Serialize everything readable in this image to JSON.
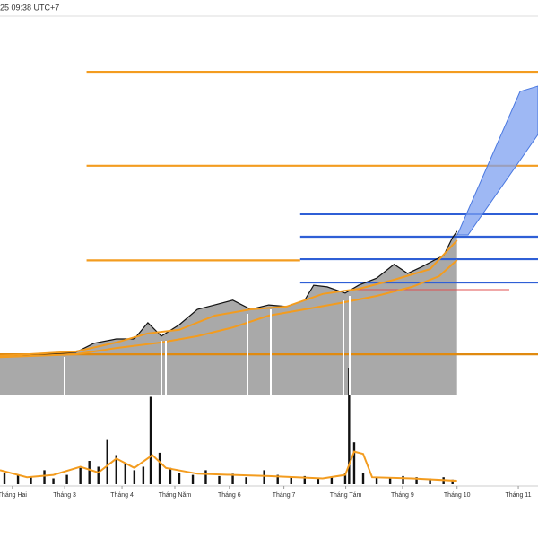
{
  "header": {
    "timestamp": "25 09:38 UTC+7"
  },
  "chart_data": [
    {
      "type": "line",
      "xlim": [
        1.78,
        11.35
      ],
      "ylim": [
        0,
        100
      ],
      "area": {
        "color": "#a9a9a9",
        "series": 0
      },
      "series": [
        {
          "color": "#111111",
          "x": [
            1.78,
            2.41,
            3.13,
            3.45,
            3.85,
            4.17,
            4.41,
            4.65,
            4.97,
            5.29,
            5.6,
            5.92,
            6.24,
            6.56,
            6.88,
            7.2,
            7.36,
            7.6,
            7.92,
            8.16,
            8.48,
            8.79,
            9.03,
            9.27,
            9.51,
            9.67,
            9.83,
            9.91
          ],
          "values": [
            9.8,
            10.0,
            10.7,
            13.0,
            14.1,
            14.1,
            18.2,
            14.8,
            17.7,
            21.6,
            22.7,
            23.9,
            21.6,
            22.7,
            22.3,
            23.9,
            27.7,
            27.3,
            25.7,
            27.7,
            29.5,
            33.0,
            30.7,
            32.3,
            34.1,
            35.2,
            39.8,
            41.4
          ]
        },
        {
          "color": "#f39c1f",
          "x": [
            1.78,
            3.13,
            3.85,
            4.41,
            4.97,
            5.6,
            6.24,
            6.88,
            7.52,
            8.16,
            8.79,
            9.43,
            9.91
          ],
          "values": [
            9.8,
            10.9,
            13.2,
            15.5,
            16.4,
            20.0,
            21.6,
            22.3,
            25.5,
            26.8,
            29.1,
            31.8,
            39.1
          ]
        },
        {
          "color": "#f39c1f",
          "x": [
            1.78,
            3.13,
            3.85,
            4.65,
            5.29,
            5.92,
            6.56,
            7.2,
            7.84,
            8.48,
            9.11,
            9.59,
            9.91
          ],
          "values": [
            9.5,
            10.2,
            11.8,
            13.2,
            14.8,
            17.0,
            20.0,
            21.6,
            23.2,
            25.0,
            27.3,
            30.0,
            34.1
          ]
        }
      ],
      "hlines": [
        {
          "value": 81.8,
          "color": "#f39c1f",
          "xrange": [
            3.32,
            11.35
          ]
        },
        {
          "value": 58.0,
          "color": "#f39c1f",
          "xrange": [
            3.32,
            11.35
          ]
        },
        {
          "value": 34.0,
          "color": "#f39c1f",
          "xrange": [
            3.32,
            7.12
          ]
        },
        {
          "value": 10.2,
          "color": "#e08a10",
          "xrange": [
            1.78,
            11.35
          ]
        },
        {
          "value": 45.7,
          "color": "#2f5fd6",
          "xrange": [
            7.12,
            11.35
          ]
        },
        {
          "value": 40.0,
          "color": "#2f5fd6",
          "xrange": [
            7.12,
            11.35
          ]
        },
        {
          "value": 34.3,
          "color": "#2f5fd6",
          "xrange": [
            7.12,
            11.35
          ]
        },
        {
          "value": 28.4,
          "color": "#2f5fd6",
          "xrange": [
            7.12,
            11.35
          ]
        },
        {
          "value": 26.6,
          "color": "#e05050",
          "xrange": [
            8.08,
            10.84
          ]
        }
      ]
    },
    {
      "type": "bar",
      "color": "#111111",
      "xlim": [
        1.78,
        11.35
      ],
      "ylim": [
        0,
        100
      ],
      "xticks": [
        {
          "value": 2,
          "label": "Tháng Hai"
        },
        {
          "value": 2.93,
          "label": "Tháng 3"
        },
        {
          "value": 3.95,
          "label": "Tháng 4"
        },
        {
          "value": 4.89,
          "label": "Tháng Năm"
        },
        {
          "value": 5.86,
          "label": "Tháng 6"
        },
        {
          "value": 6.83,
          "label": "Tháng 7"
        },
        {
          "value": 7.93,
          "label": "Tháng Tám"
        },
        {
          "value": 8.94,
          "label": "Tháng 9"
        },
        {
          "value": 9.91,
          "label": "Tháng 10"
        },
        {
          "value": 11.0,
          "label": "Tháng 11"
        }
      ],
      "x": [
        1.86,
        2.1,
        2.33,
        2.57,
        2.73,
        2.97,
        3.21,
        3.37,
        3.53,
        3.69,
        3.85,
        4.01,
        4.17,
        4.33,
        4.46,
        4.62,
        4.81,
        4.97,
        5.21,
        5.44,
        5.68,
        5.92,
        6.16,
        6.48,
        6.72,
        6.96,
        7.2,
        7.44,
        7.68,
        7.92,
        7.99,
        8.08,
        8.24,
        8.48,
        8.72,
        8.95,
        9.19,
        9.43,
        9.67,
        9.83
      ],
      "values": [
        10,
        8,
        6,
        12,
        5,
        8,
        14,
        20,
        15,
        38,
        25,
        18,
        12,
        15,
        75,
        27,
        14,
        10,
        8,
        12,
        7,
        9,
        6,
        12,
        8,
        6,
        7,
        5,
        6,
        10,
        100,
        36,
        10,
        6,
        5,
        7,
        6,
        5,
        6,
        4
      ],
      "overlay": {
        "color": "#f39c1f",
        "x": [
          1.78,
          2.26,
          2.73,
          3.21,
          3.53,
          3.85,
          4.17,
          4.49,
          4.73,
          5.29,
          5.92,
          6.56,
          7.52,
          7.92,
          8.08,
          8.24,
          8.4,
          9.11,
          9.91
        ],
        "values": [
          12,
          6,
          8,
          15,
          10,
          22,
          14,
          25,
          14,
          9,
          8,
          7,
          5,
          8,
          28,
          26,
          6,
          5,
          3
        ]
      }
    }
  ]
}
